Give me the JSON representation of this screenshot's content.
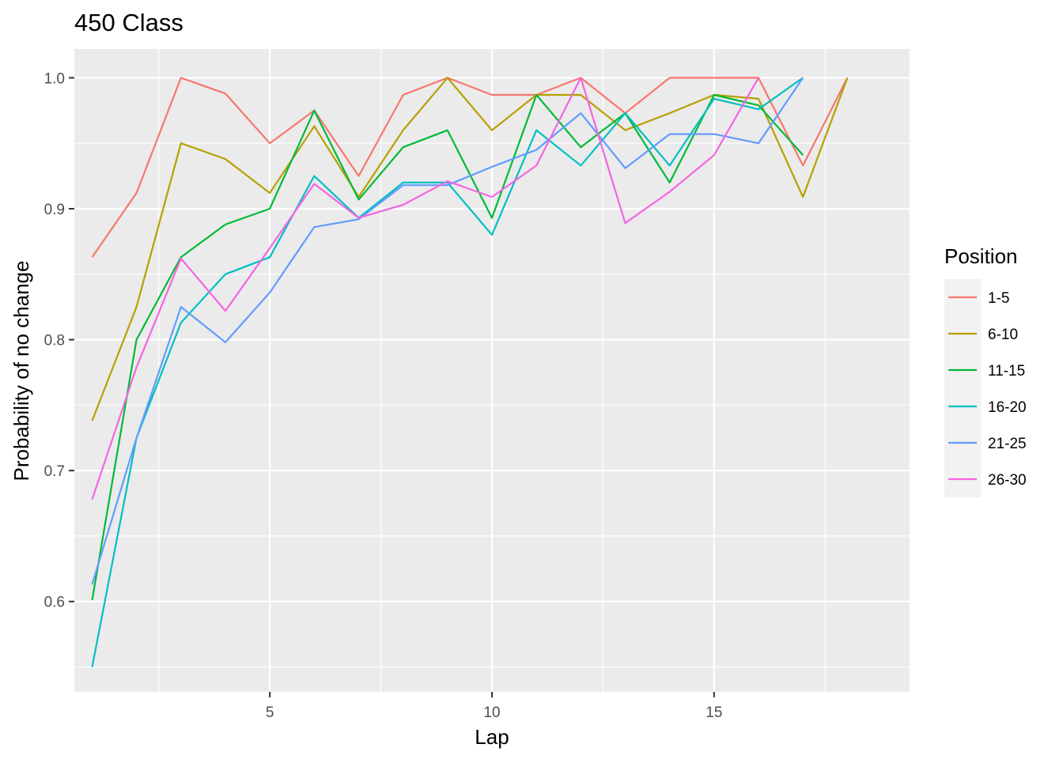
{
  "chart_data": {
    "type": "line",
    "title": "450 Class",
    "xlabel": "Lap",
    "ylabel": "Probability of no change",
    "xlim": [
      0.6,
      19.4
    ],
    "ylim": [
      0.531,
      1.022
    ],
    "x_ticks": [
      5,
      10,
      15
    ],
    "x_tick_labels": [
      "5",
      "10",
      "15"
    ],
    "y_ticks": [
      0.6,
      0.7,
      0.8,
      0.9,
      1.0
    ],
    "y_tick_labels": [
      "0.6",
      "0.7",
      "0.8",
      "0.9",
      "1.0"
    ],
    "grid": true,
    "legend": {
      "title": "Position",
      "placement": "right"
    },
    "series": [
      {
        "name": "1-5",
        "color": "#F8766D",
        "x": [
          1,
          2,
          3,
          4,
          5,
          6,
          7,
          8,
          9,
          10,
          11,
          12,
          13,
          14,
          15,
          16,
          17,
          18
        ],
        "y": [
          0.863,
          0.912,
          1.0,
          0.988,
          0.95,
          0.975,
          0.925,
          0.987,
          1.0,
          0.987,
          0.987,
          1.0,
          0.973,
          1.0,
          1.0,
          1.0,
          0.933,
          1.0
        ]
      },
      {
        "name": "6-10",
        "color": "#B79F00",
        "x": [
          1,
          2,
          3,
          4,
          5,
          6,
          7,
          8,
          9,
          10,
          11,
          12,
          13,
          14,
          15,
          16,
          17,
          18
        ],
        "y": [
          0.738,
          0.825,
          0.95,
          0.938,
          0.912,
          0.963,
          0.909,
          0.96,
          1.0,
          0.96,
          0.987,
          0.987,
          0.96,
          0.973,
          0.987,
          0.984,
          0.909,
          1.0
        ]
      },
      {
        "name": "11-15",
        "color": "#00BA38",
        "x": [
          1,
          2,
          3,
          4,
          5,
          6,
          7,
          8,
          9,
          10,
          11,
          12,
          13,
          14,
          15,
          16,
          17
        ],
        "y": [
          0.601,
          0.8,
          0.863,
          0.888,
          0.9,
          0.975,
          0.907,
          0.947,
          0.96,
          0.893,
          0.987,
          0.947,
          0.973,
          0.92,
          0.987,
          0.979,
          0.941
        ]
      },
      {
        "name": "16-20",
        "color": "#00BFC4",
        "x": [
          1,
          2,
          3,
          4,
          5,
          6,
          7,
          8,
          9,
          10,
          11,
          12,
          13,
          14,
          15,
          16,
          17
        ],
        "y": [
          0.55,
          0.725,
          0.813,
          0.85,
          0.863,
          0.925,
          0.893,
          0.92,
          0.92,
          0.88,
          0.96,
          0.933,
          0.973,
          0.933,
          0.984,
          0.976,
          1.0
        ]
      },
      {
        "name": "21-25",
        "color": "#619CFF",
        "x": [
          1,
          2,
          3,
          4,
          5,
          6,
          7,
          8,
          9,
          10,
          11,
          12,
          13,
          14,
          15,
          16,
          17
        ],
        "y": [
          0.613,
          0.725,
          0.825,
          0.798,
          0.836,
          0.886,
          0.892,
          0.918,
          0.918,
          0.932,
          0.945,
          0.973,
          0.931,
          0.957,
          0.957,
          0.95,
          1.0
        ]
      },
      {
        "name": "26-30",
        "color": "#F564E3",
        "x": [
          1,
          2,
          3,
          4,
          5,
          6,
          7,
          8,
          9,
          10,
          11,
          12,
          13,
          14,
          15,
          16
        ],
        "y": [
          0.678,
          0.779,
          0.862,
          0.822,
          0.87,
          0.919,
          0.893,
          0.903,
          0.921,
          0.909,
          0.933,
          1.0,
          0.889,
          0.913,
          0.941,
          1.0
        ]
      }
    ]
  }
}
